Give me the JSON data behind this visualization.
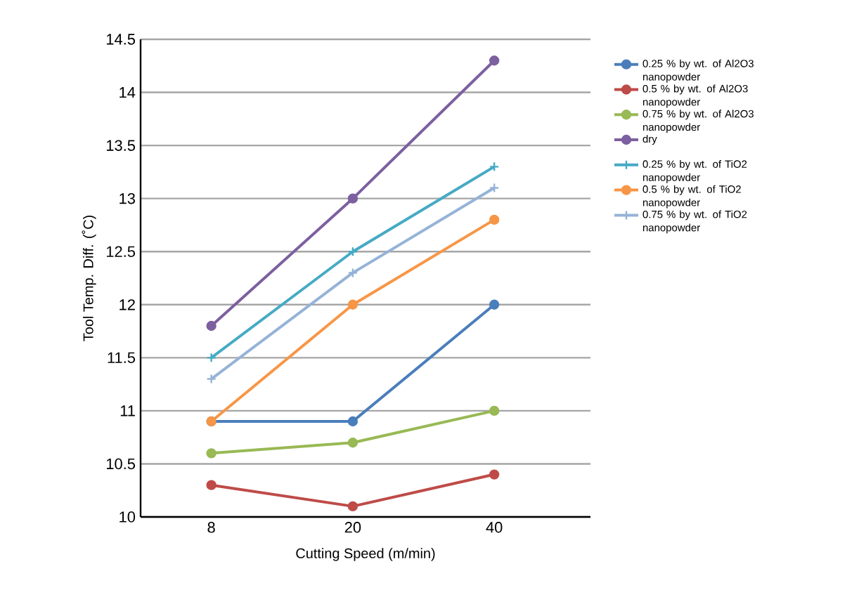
{
  "chart_data": {
    "type": "line",
    "xlabel": "Cutting Speed (m/min)",
    "ylabel": "Tool Temp. Diff. (˚C)",
    "categories": [
      "8",
      "20",
      "40"
    ],
    "ylim": [
      10,
      14.5
    ],
    "yticks": [
      10,
      10.5,
      11,
      11.5,
      12,
      12.5,
      13,
      13.5,
      14,
      14.5
    ],
    "grid": "y",
    "legend": "right",
    "series": [
      {
        "name": "0.25 % by wt. of Al2O3 nanopowder",
        "color": "#4a7ebb",
        "marker": "circle",
        "values": [
          10.9,
          10.9,
          12.0
        ]
      },
      {
        "name": "0.5 %  by wt. of Al2O3 nanopowder",
        "color": "#be4b48",
        "marker": "circle",
        "values": [
          10.3,
          10.1,
          10.4
        ]
      },
      {
        "name": "0.75 %  by wt. of Al2O3 nanopowder",
        "color": "#98b954",
        "marker": "circle",
        "values": [
          10.6,
          10.7,
          11.0
        ]
      },
      {
        "name": "dry",
        "color": "#7d60a0",
        "marker": "circle",
        "values": [
          11.8,
          13.0,
          14.3
        ]
      },
      {
        "name": "0.25 % by wt. of TiO2 nanopowder",
        "color": "#46aac5",
        "marker": "cross",
        "values": [
          11.5,
          12.5,
          13.3
        ]
      },
      {
        "name": "0.5 % by wt. of TiO2 nanopowder",
        "color": "#f79646",
        "marker": "circle",
        "values": [
          10.9,
          12.0,
          12.8
        ]
      },
      {
        "name": "0.75 % by wt. of TiO2 nanopowder",
        "color": "#95b3d7",
        "marker": "cross",
        "values": [
          11.3,
          12.3,
          13.1
        ]
      }
    ]
  }
}
